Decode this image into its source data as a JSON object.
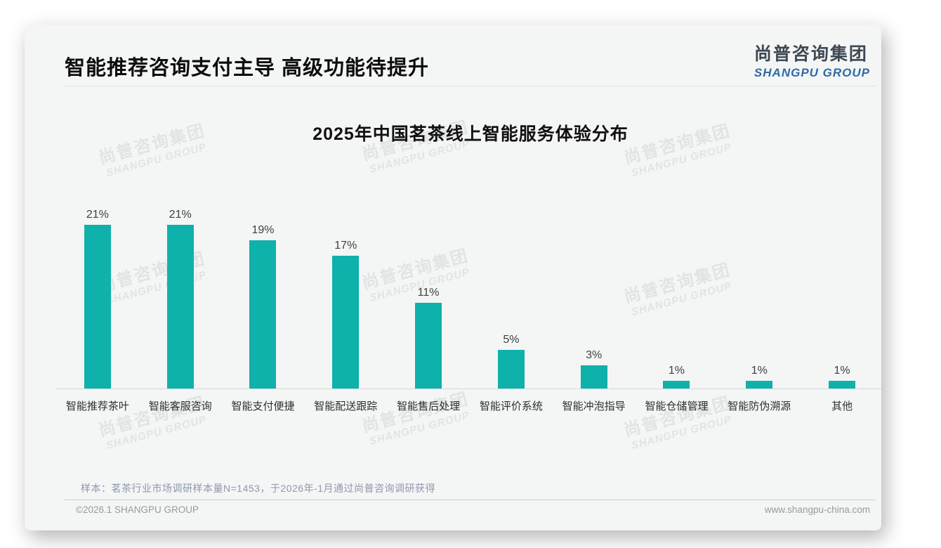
{
  "slide": {
    "title": "智能推荐咨询支付主导 高级功能待提升",
    "logo": {
      "cn": "尚普咨询集团",
      "en": "SHANGPU GROUP"
    },
    "watermark": {
      "cn": "尚普咨询集团",
      "en": "SHANGPU GROUP"
    },
    "footer": {
      "note": "样本：茗茶行业市场调研样本量N=1453，于2026年-1月通过尚普咨询调研获得",
      "copyright": "©2026.1 SHANGPU GROUP",
      "website": "www.shangpu-china.com"
    }
  },
  "chart_data": {
    "type": "bar",
    "title": "2025年中国茗茶线上智能服务体验分布",
    "categories": [
      "智能推荐茶叶",
      "智能客服咨询",
      "智能支付便捷",
      "智能配送跟踪",
      "智能售后处理",
      "智能评价系统",
      "智能冲泡指导",
      "智能仓储管理",
      "智能防伪溯源",
      "其他"
    ],
    "values": [
      21,
      21,
      19,
      17,
      11,
      5,
      3,
      1,
      1,
      1
    ],
    "data_labels": [
      "21%",
      "21%",
      "19%",
      "17%",
      "11%",
      "5%",
      "3%",
      "1%",
      "1%",
      "1%"
    ],
    "unit": "%",
    "bar_color": "#0fb1ab",
    "label_color": "#404040",
    "ylim": [
      0,
      23
    ],
    "grid": false,
    "legend": "none"
  }
}
